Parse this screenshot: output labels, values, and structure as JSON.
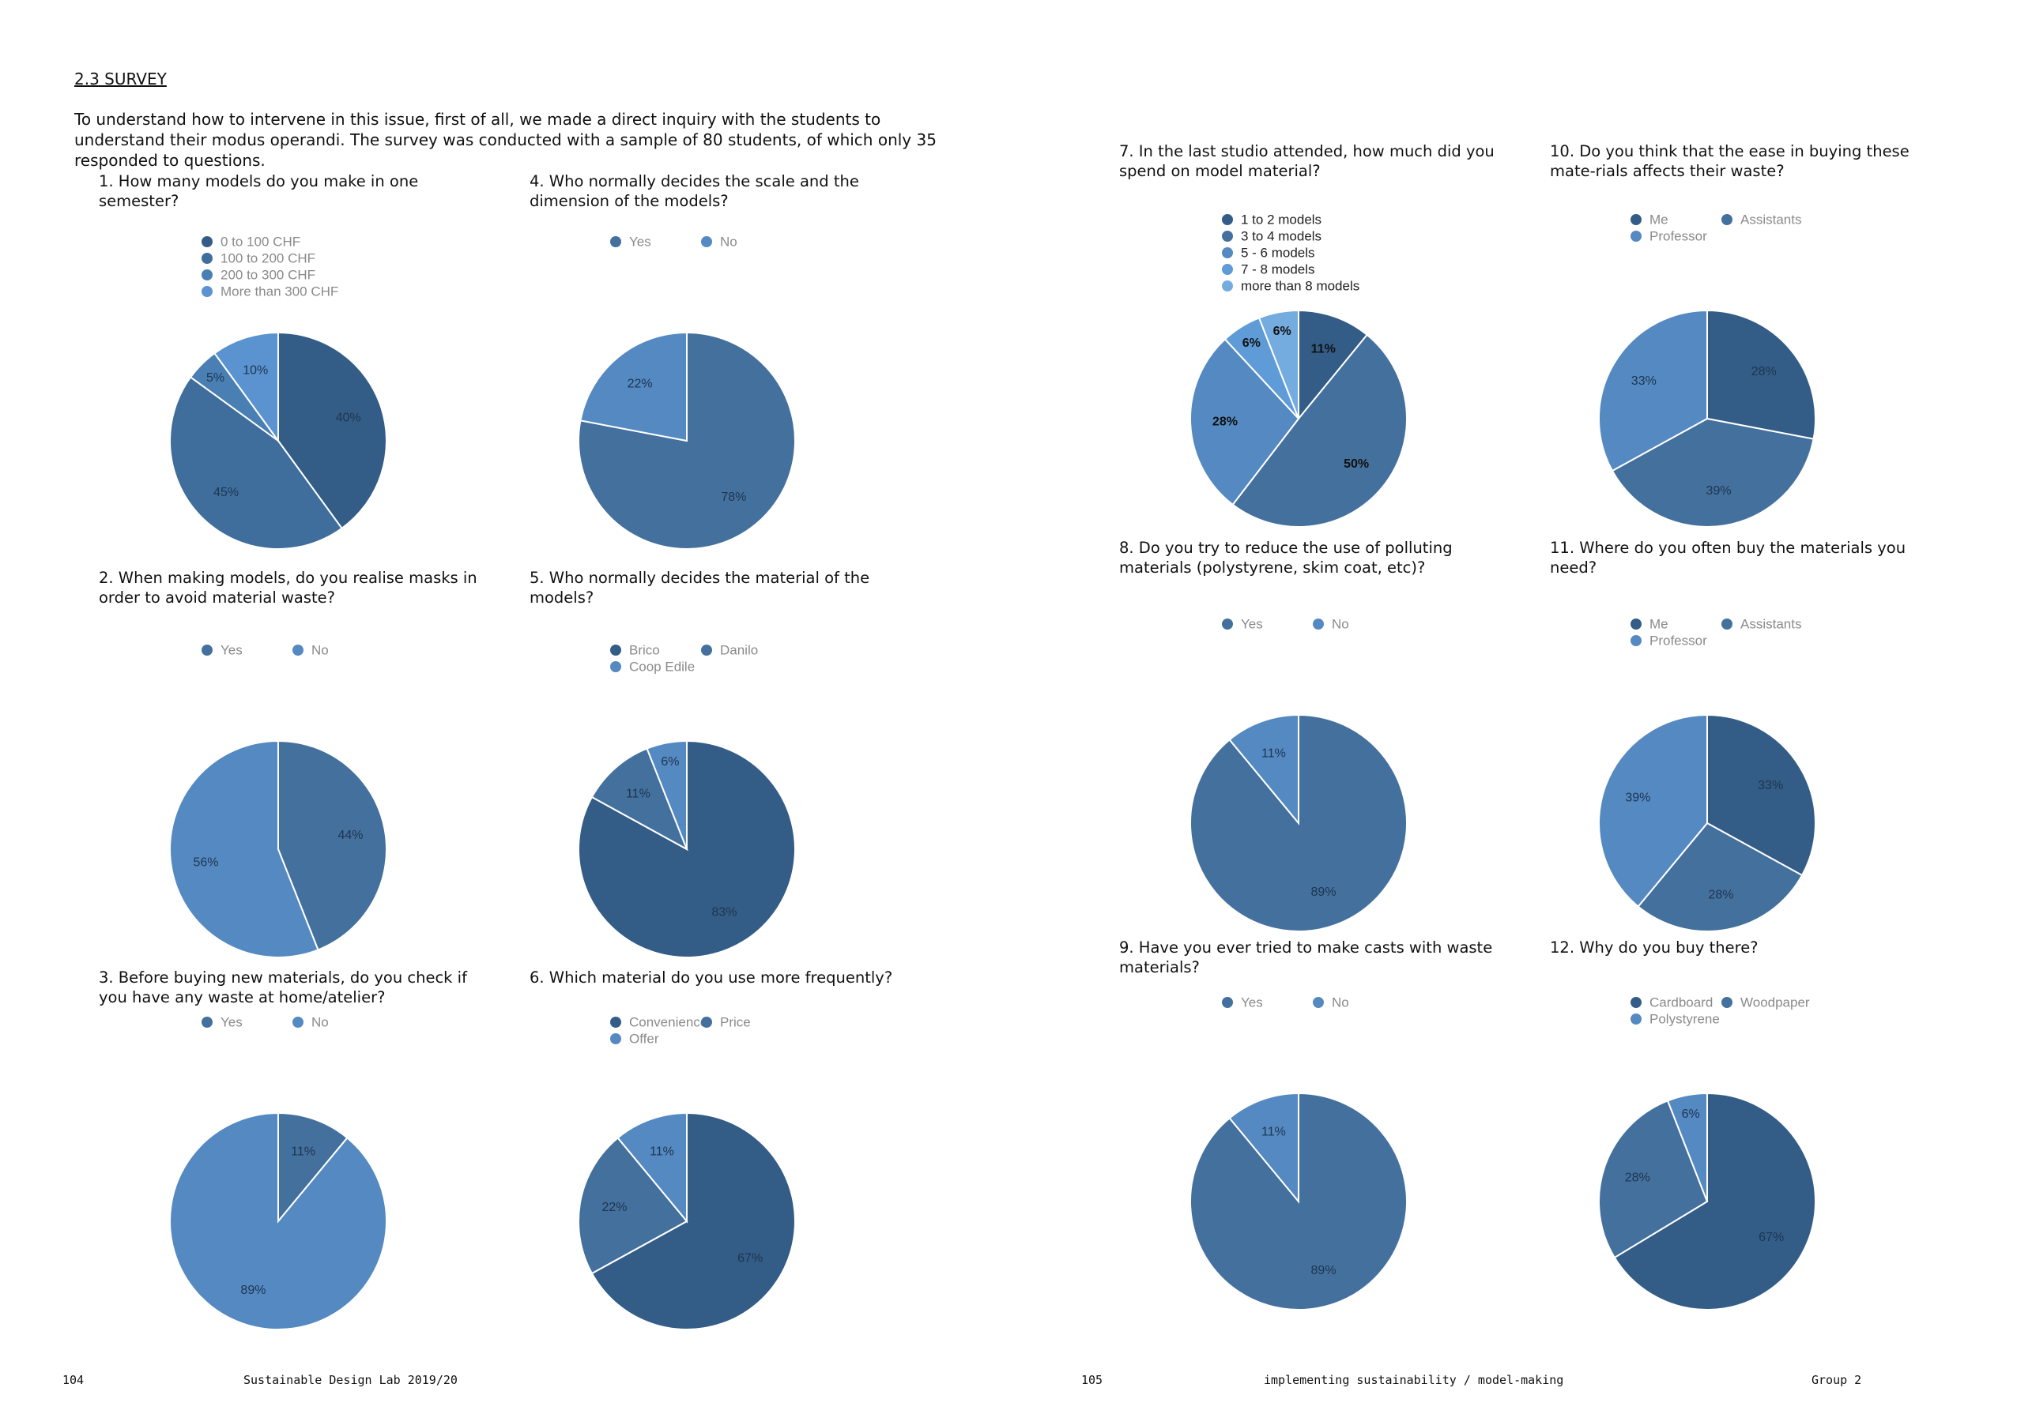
{
  "header": {
    "section": "2.3 SURVEY",
    "intro": "To understand how to intervene in this issue, first of all, we made a direct inquiry with the students to understand their modus operandi. The survey was conducted with a sample of 80 students, of which only 35 responded to questions."
  },
  "chart_data": [
    {
      "type": "pie",
      "title": "1.  How many models do you make in one semester?",
      "categories": [
        "0 to 100 CHF",
        "100 to 200 CHF",
        "200 to 300 CHF",
        "More than 300 CHF"
      ],
      "values": [
        40,
        45,
        5,
        10
      ],
      "value_labels": [
        "40%",
        "45%",
        "5%",
        "10%"
      ],
      "colors": [
        "#335d87",
        "#3f6e9c",
        "#4a7fb4",
        "#5a93cf"
      ]
    },
    {
      "type": "pie",
      "title": "2.  When making models, do you realise masks in order to avoid material waste?",
      "categories": [
        "Yes",
        "No"
      ],
      "values": [
        44,
        56
      ],
      "value_labels": [
        "44%",
        "56%"
      ],
      "colors": [
        "#44709e",
        "#5589c2"
      ]
    },
    {
      "type": "pie",
      "title": "3.  Before buying new materials, do you check if you have any waste at home/atelier?",
      "categories": [
        "Yes",
        "No"
      ],
      "values": [
        11,
        89
      ],
      "value_labels": [
        "11%",
        "89%"
      ],
      "colors": [
        "#44709e",
        "#5589c2"
      ]
    },
    {
      "type": "pie",
      "title": "4.  Who normally decides the scale and the dimension of the models?",
      "categories": [
        "Yes",
        "No"
      ],
      "values": [
        78,
        22
      ],
      "value_labels": [
        "78%",
        "22%"
      ],
      "colors": [
        "#44709e",
        "#5589c2"
      ]
    },
    {
      "type": "pie",
      "title": "5.  Who normally decides the material of the models?",
      "categories": [
        "Brico",
        "Danilo",
        "Coop Edile"
      ],
      "values": [
        83,
        11,
        6
      ],
      "value_labels": [
        "83%",
        "11%",
        "6%"
      ],
      "colors": [
        "#335d87",
        "#44709e",
        "#5589c2"
      ]
    },
    {
      "type": "pie",
      "title": "6.  Which material do you use more frequently?",
      "categories": [
        "Convenience",
        "Price",
        "Offer"
      ],
      "values": [
        67,
        22,
        11
      ],
      "value_labels": [
        "67%",
        "22%",
        "11%"
      ],
      "colors": [
        "#335d87",
        "#44709e",
        "#5589c2"
      ]
    },
    {
      "type": "pie",
      "title": "7.  In the last studio attended, how much did you spend on model material?",
      "categories": [
        "1 to 2 models",
        "3 to 4 models",
        "5 - 6 models",
        "7 - 8 models",
        "more than 8 models"
      ],
      "values": [
        11,
        50,
        28,
        6,
        6
      ],
      "value_labels": [
        "11%",
        "50%",
        "28%",
        "6%",
        "6%"
      ],
      "colors": [
        "#335d87",
        "#44709e",
        "#5589c2",
        "#5f9bd6",
        "#74ace0"
      ]
    },
    {
      "type": "pie",
      "title": "8.  Do you try to reduce the use of polluting materials (polystyrene, skim coat, etc)?",
      "categories": [
        "Yes",
        "No"
      ],
      "values": [
        89,
        11
      ],
      "value_labels": [
        "89%",
        "11%"
      ],
      "colors": [
        "#44709e",
        "#5589c2"
      ]
    },
    {
      "type": "pie",
      "title": "9.  Have you ever tried to make casts with waste materials?",
      "categories": [
        "Yes",
        "No"
      ],
      "values": [
        89,
        11
      ],
      "value_labels": [
        "89%",
        "11%"
      ],
      "colors": [
        "#44709e",
        "#5589c2"
      ]
    },
    {
      "type": "pie",
      "title": "10.  Do you think that the ease in buying these mate-rials affects their waste?",
      "categories": [
        "Me",
        "Assistants",
        "Professor"
      ],
      "values": [
        28,
        39,
        33
      ],
      "value_labels": [
        "28%",
        "39%",
        "33%"
      ],
      "colors": [
        "#335d87",
        "#44709e",
        "#5589c2"
      ]
    },
    {
      "type": "pie",
      "title": "11.  Where do you often buy the materials you need?",
      "categories": [
        "Me",
        "Assistants",
        "Professor"
      ],
      "values": [
        33,
        28,
        39
      ],
      "value_labels": [
        "33%",
        "28%",
        "39%"
      ],
      "colors": [
        "#335d87",
        "#44709e",
        "#5589c2"
      ]
    },
    {
      "type": "pie",
      "title": "12.  Why do you buy there?",
      "categories": [
        "Cardboard",
        "Woodpaper",
        "Polystyrene"
      ],
      "values": [
        67,
        28,
        6
      ],
      "value_labels": [
        "67%",
        "28%",
        "6%"
      ],
      "colors": [
        "#335d87",
        "#44709e",
        "#5589c2"
      ]
    }
  ],
  "footer": {
    "left_page": "104",
    "left_text": "Sustainable Design Lab 2019/20",
    "right_page": "105",
    "right_text": "implementing sustainability / model-making",
    "right_group": "Group 2"
  }
}
